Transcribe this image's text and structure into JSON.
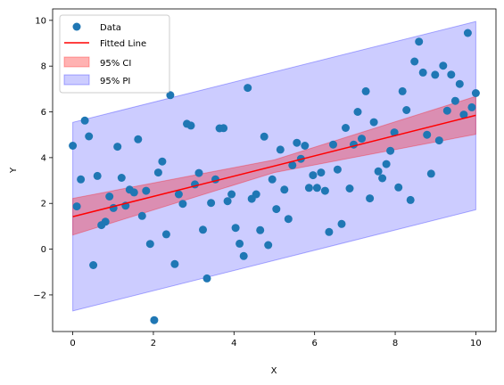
{
  "chart_data": {
    "type": "scatter",
    "title": "",
    "xlabel": "X",
    "ylabel": "Y",
    "xlim": [
      -0.5,
      10.5
    ],
    "ylim": [
      -3.6,
      10.5
    ],
    "xticks": [
      0,
      2,
      4,
      6,
      8,
      10
    ],
    "yticks": [
      -2,
      0,
      2,
      4,
      6,
      8,
      10
    ],
    "grid": false,
    "legend_position": "top-left",
    "legend": [
      {
        "label": "Data",
        "kind": "marker",
        "color": "#1f77b4"
      },
      {
        "label": "Fitted Line",
        "kind": "line",
        "color": "#ff0000"
      },
      {
        "label": "95% CI",
        "kind": "band",
        "color": "#ff0000"
      },
      {
        "label": "95% PI",
        "kind": "band",
        "color": "#0000ff"
      }
    ],
    "fitted_line": {
      "x": [
        0,
        10
      ],
      "y": [
        1.42,
        5.85
      ]
    },
    "ci_band": {
      "x": [
        0,
        5,
        10
      ],
      "lower": [
        0.62,
        3.35,
        5.02
      ],
      "upper": [
        2.22,
        3.9,
        6.68
      ]
    },
    "pi_band": {
      "x": [
        0,
        10
      ],
      "lower": [
        -2.7,
        1.72
      ],
      "upper": [
        5.54,
        9.95
      ]
    },
    "points": [
      [
        0.0,
        4.52
      ],
      [
        0.1,
        1.87
      ],
      [
        0.2,
        3.05
      ],
      [
        0.3,
        5.62
      ],
      [
        0.4,
        4.93
      ],
      [
        0.51,
        -0.7
      ],
      [
        0.61,
        3.2
      ],
      [
        0.71,
        1.05
      ],
      [
        0.81,
        1.2
      ],
      [
        0.91,
        2.3
      ],
      [
        1.01,
        1.8
      ],
      [
        1.11,
        4.48
      ],
      [
        1.21,
        3.12
      ],
      [
        1.31,
        1.9
      ],
      [
        1.41,
        2.6
      ],
      [
        1.52,
        2.48
      ],
      [
        1.62,
        4.8
      ],
      [
        1.72,
        1.45
      ],
      [
        1.82,
        2.55
      ],
      [
        1.92,
        0.23
      ],
      [
        2.02,
        -3.1
      ],
      [
        2.12,
        3.35
      ],
      [
        2.22,
        3.83
      ],
      [
        2.32,
        0.65
      ],
      [
        2.42,
        6.73
      ],
      [
        2.53,
        -0.65
      ],
      [
        2.63,
        2.4
      ],
      [
        2.73,
        1.98
      ],
      [
        2.83,
        5.48
      ],
      [
        2.93,
        5.4
      ],
      [
        3.03,
        2.83
      ],
      [
        3.13,
        3.33
      ],
      [
        3.23,
        0.85
      ],
      [
        3.33,
        -1.28
      ],
      [
        3.43,
        2.02
      ],
      [
        3.54,
        3.05
      ],
      [
        3.64,
        5.28
      ],
      [
        3.74,
        5.29
      ],
      [
        3.84,
        2.1
      ],
      [
        3.94,
        2.4
      ],
      [
        4.04,
        0.93
      ],
      [
        4.14,
        0.24
      ],
      [
        4.24,
        -0.3
      ],
      [
        4.34,
        7.05
      ],
      [
        4.44,
        2.2
      ],
      [
        4.55,
        2.4
      ],
      [
        4.65,
        0.83
      ],
      [
        4.75,
        4.92
      ],
      [
        4.85,
        0.18
      ],
      [
        4.95,
        3.05
      ],
      [
        5.05,
        1.75
      ],
      [
        5.15,
        4.35
      ],
      [
        5.25,
        2.6
      ],
      [
        5.35,
        1.32
      ],
      [
        5.45,
        3.67
      ],
      [
        5.56,
        4.65
      ],
      [
        5.66,
        3.95
      ],
      [
        5.76,
        4.52
      ],
      [
        5.86,
        2.68
      ],
      [
        5.96,
        3.23
      ],
      [
        6.06,
        2.68
      ],
      [
        6.16,
        3.35
      ],
      [
        6.26,
        2.55
      ],
      [
        6.36,
        0.75
      ],
      [
        6.46,
        4.57
      ],
      [
        6.57,
        3.48
      ],
      [
        6.67,
        1.1
      ],
      [
        6.77,
        5.3
      ],
      [
        6.87,
        2.65
      ],
      [
        6.97,
        4.57
      ],
      [
        7.07,
        6.0
      ],
      [
        7.17,
        4.83
      ],
      [
        7.27,
        6.9
      ],
      [
        7.37,
        2.22
      ],
      [
        7.47,
        5.55
      ],
      [
        7.58,
        3.4
      ],
      [
        7.68,
        3.1
      ],
      [
        7.78,
        3.72
      ],
      [
        7.88,
        4.3
      ],
      [
        7.98,
        5.1
      ],
      [
        8.08,
        2.7
      ],
      [
        8.18,
        6.9
      ],
      [
        8.28,
        6.08
      ],
      [
        8.38,
        2.15
      ],
      [
        8.48,
        8.2
      ],
      [
        8.59,
        9.07
      ],
      [
        8.69,
        7.72
      ],
      [
        8.79,
        5.0
      ],
      [
        8.89,
        3.3
      ],
      [
        8.99,
        7.62
      ],
      [
        9.09,
        4.75
      ],
      [
        9.19,
        8.02
      ],
      [
        9.29,
        6.05
      ],
      [
        9.39,
        7.63
      ],
      [
        9.49,
        6.48
      ],
      [
        9.6,
        7.22
      ],
      [
        9.7,
        5.88
      ],
      [
        9.8,
        9.45
      ],
      [
        9.9,
        6.2
      ],
      [
        10.0,
        6.82
      ]
    ]
  }
}
